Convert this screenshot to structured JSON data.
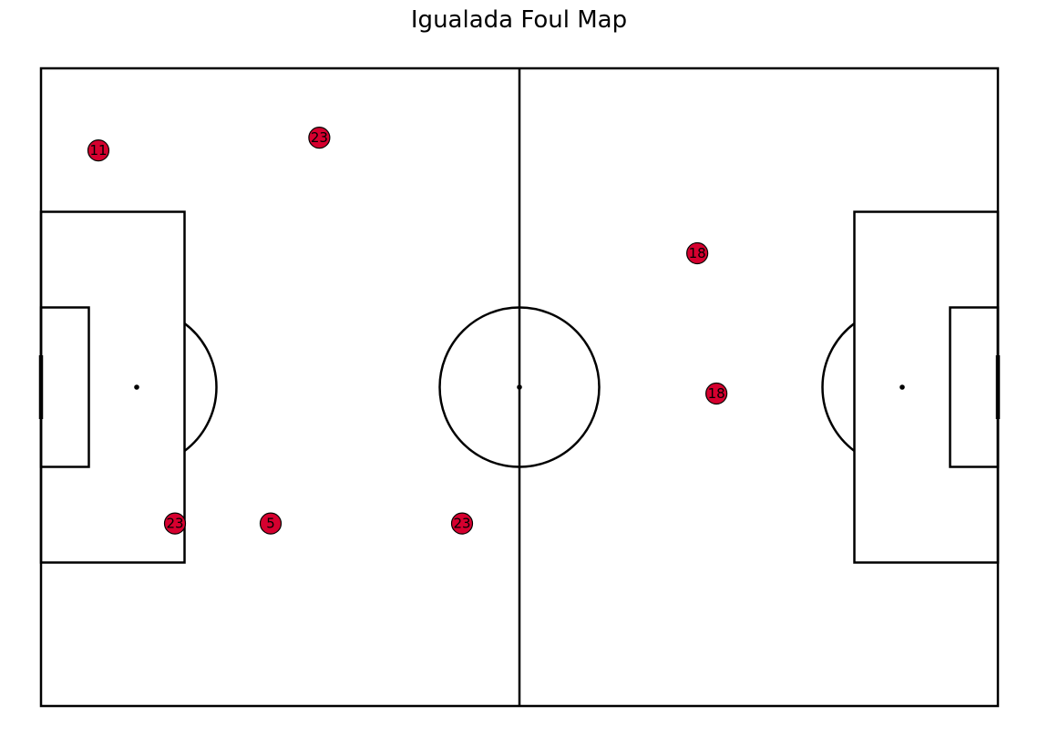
{
  "title": "Igualada Foul Map",
  "chart_data": {
    "type": "scatter",
    "title": "Igualada Foul Map",
    "xlim": [
      0,
      120
    ],
    "ylim": [
      0,
      80
    ],
    "marker_color": "#d6002f",
    "marker_edge_color": "#000000",
    "line_color": "#000000",
    "background": "#ffffff",
    "points": [
      {
        "x": 7.2,
        "y": 10.3,
        "label": "11"
      },
      {
        "x": 34.9,
        "y": 8.7,
        "label": "23"
      },
      {
        "x": 16.8,
        "y": 57.1,
        "label": "23"
      },
      {
        "x": 28.8,
        "y": 57.1,
        "label": "5"
      },
      {
        "x": 52.8,
        "y": 57.1,
        "label": "23"
      },
      {
        "x": 82.3,
        "y": 23.2,
        "label": "18"
      },
      {
        "x": 84.7,
        "y": 40.8,
        "label": "18"
      }
    ]
  }
}
